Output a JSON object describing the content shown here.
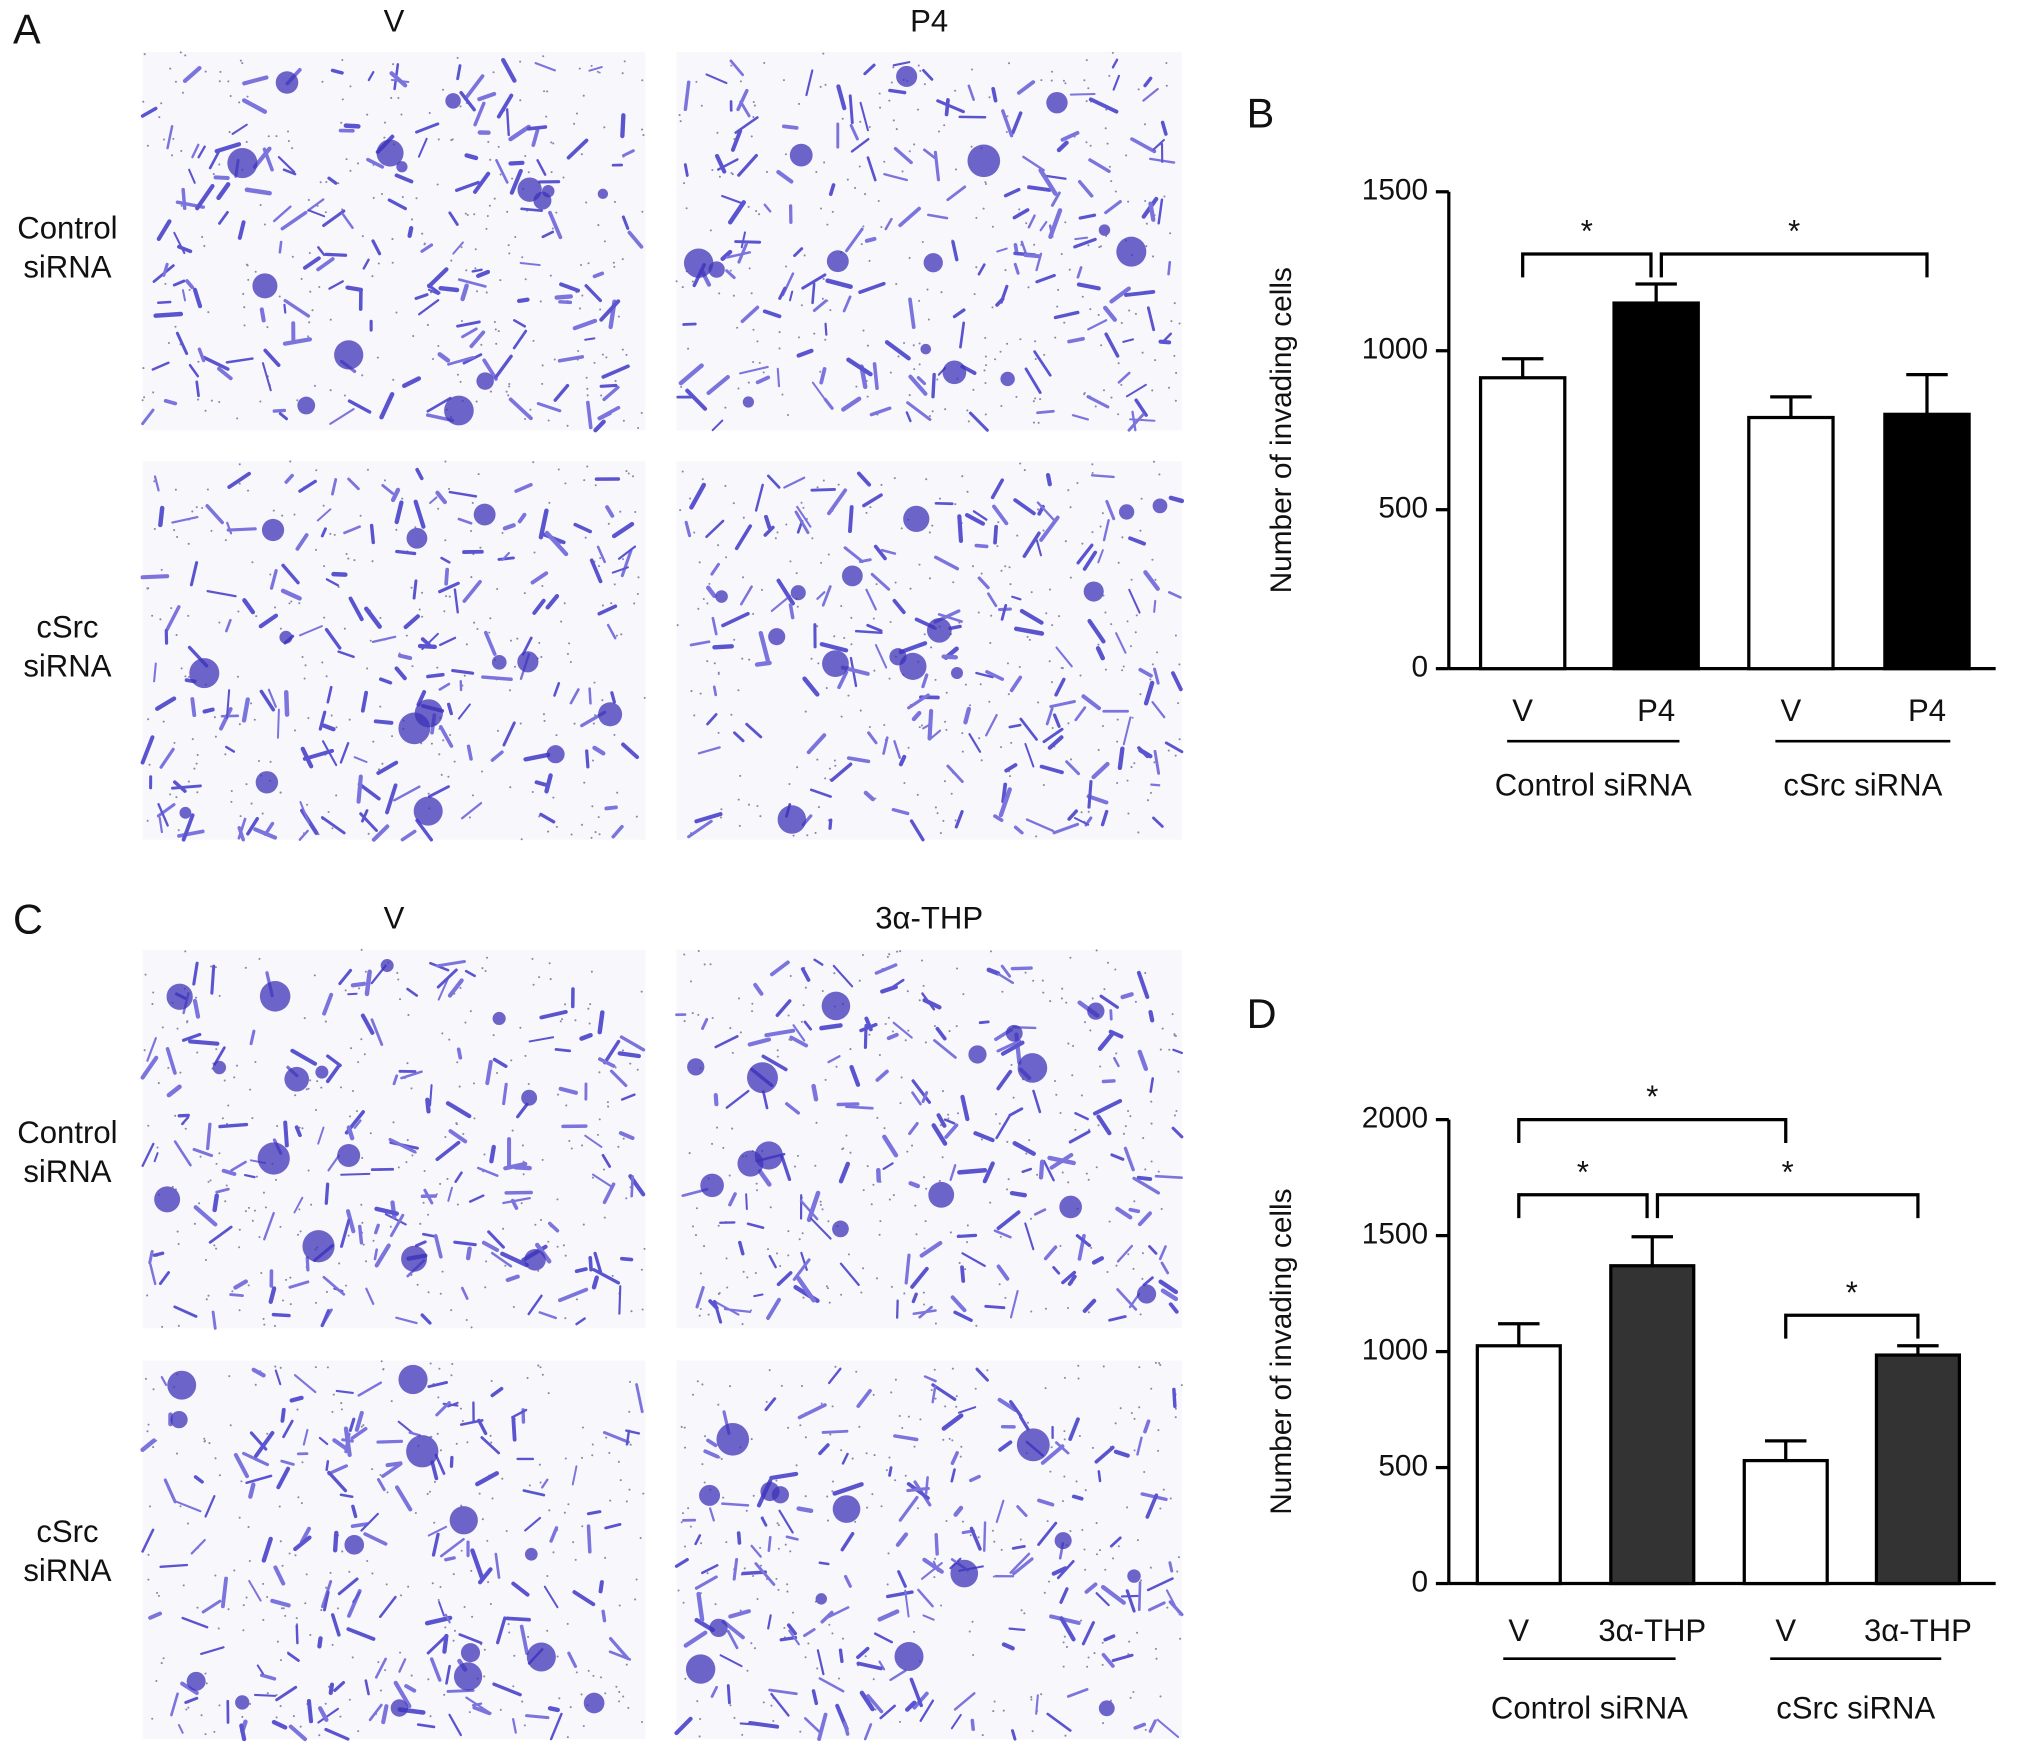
{
  "panels": [
    {
      "panel_label": "A",
      "columns": [
        "V",
        "P4"
      ],
      "rows": [
        "Control siRNA",
        "cSrc siRNA"
      ]
    },
    {
      "panel_label": "C",
      "columns": [
        "V",
        "3α-THP"
      ],
      "rows": [
        "Control siRNA",
        "cSrc siRNA"
      ]
    }
  ],
  "chart_data": [
    {
      "type": "bar",
      "panel_label": "B",
      "y_label": "Number of invading cells",
      "categories": [
        "V",
        "P4",
        "V",
        "P4"
      ],
      "groups": [
        "Control siRNA",
        "cSrc siRNA"
      ],
      "values": [
        915,
        1150,
        790,
        800
      ],
      "errors": [
        60,
        60,
        65,
        125
      ],
      "colors": [
        "#ffffff",
        "#000000",
        "#ffffff",
        "#000000"
      ],
      "ylim": [
        0,
        1500
      ],
      "yticks": [
        0,
        500,
        1000,
        1500
      ],
      "annotations": [
        {
          "text": "*",
          "from": 0,
          "to": 1
        },
        {
          "text": "*",
          "from": 1,
          "to": 3
        }
      ]
    },
    {
      "type": "bar",
      "panel_label": "D",
      "y_label": "Number of invading cells",
      "categories": [
        "V",
        "3α-THP",
        "V",
        "3α-THP"
      ],
      "groups": [
        "Control siRNA",
        "cSrc siRNA"
      ],
      "values": [
        1025,
        1370,
        530,
        985
      ],
      "errors": [
        95,
        125,
        85,
        40
      ],
      "colors": [
        "#ffffff",
        "#333333",
        "#ffffff",
        "#333333"
      ],
      "ylim": [
        0,
        2000
      ],
      "yticks": [
        0,
        500,
        1000,
        1500,
        2000
      ],
      "annotations": [
        {
          "text": "*",
          "from": 0,
          "to": 2
        },
        {
          "text": "*",
          "from": 0,
          "to": 1
        },
        {
          "text": "*",
          "from": 1,
          "to": 3
        },
        {
          "text": "*",
          "from": 2,
          "to": 3
        }
      ]
    }
  ]
}
